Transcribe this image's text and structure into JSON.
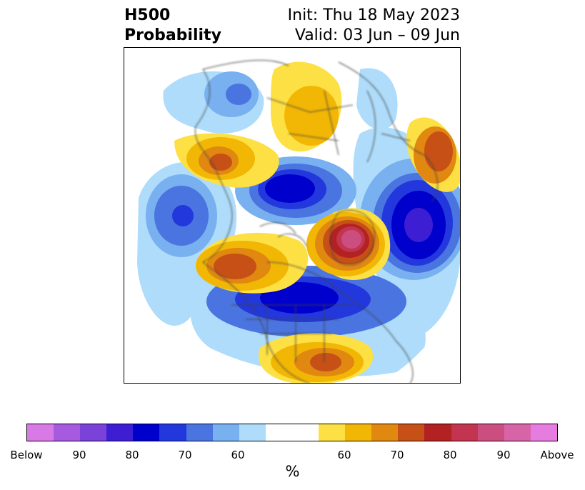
{
  "title": {
    "left_line1": "H500",
    "left_line2": "Probability",
    "right_line1": "Init: Thu 18 May 2023",
    "right_line2": "Valid: 03 Jun – 09 Jun"
  },
  "colorbar": {
    "label": "%",
    "ticks": [
      "Below",
      "90",
      "80",
      "70",
      "60",
      "60",
      "70",
      "80",
      "90",
      "Above"
    ],
    "below_colors": [
      "#d87ae6",
      "#a55ae0",
      "#7a42d8",
      "#3d1ed2",
      "#0000cc",
      "#2238dc",
      "#4a74e0",
      "#78b0f0",
      "#aedcfa"
    ],
    "neutral_color": "#ffffff",
    "above_colors": [
      "#fde044",
      "#f2b705",
      "#e08810",
      "#c65016",
      "#b22222",
      "#c2344f",
      "#cc4e80",
      "#d864a8",
      "#e67ce0"
    ]
  },
  "colors": {
    "coastline": "#404040",
    "frame": "#000000"
  }
}
